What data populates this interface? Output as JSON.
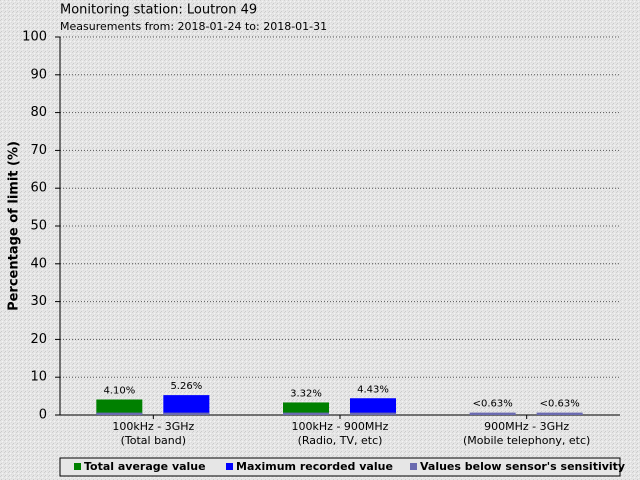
{
  "chart_data": {
    "type": "bar",
    "title": "Monitoring station: Loutron 49",
    "subtitle": "Measurements from: 2018-01-24 to: 2018-01-31",
    "y_label": "Percentage of limit (%)",
    "categories": [
      [
        "100kHz - 3GHz",
        "(Total band)"
      ],
      [
        "100kHz - 900MHz",
        "(Radio, TV, etc)"
      ],
      [
        "900MHz - 3GHz",
        "(Mobile telephony, etc)"
      ]
    ],
    "series": [
      {
        "name": "Total average value",
        "color": "#008000",
        "values": [
          4.1,
          3.32,
          null
        ],
        "value_labels": [
          "4.10%",
          "3.32%",
          null
        ]
      },
      {
        "name": "Maximum recorded value",
        "color": "#0000ff",
        "values": [
          5.26,
          4.43,
          null
        ],
        "value_labels": [
          "5.26%",
          "4.43%",
          null
        ]
      },
      {
        "name": "Values below sensor's sensitivity",
        "color": "#6b6bb0",
        "values": [
          0.63,
          0.63,
          0.63
        ],
        "value_labels": [
          null,
          null,
          "<0.63%"
        ]
      }
    ],
    "ylim": [
      0,
      100
    ],
    "yticks": [
      0,
      10,
      20,
      30,
      40,
      50,
      60,
      70,
      80,
      90,
      100
    ],
    "grid": true,
    "legend": "bottom"
  }
}
